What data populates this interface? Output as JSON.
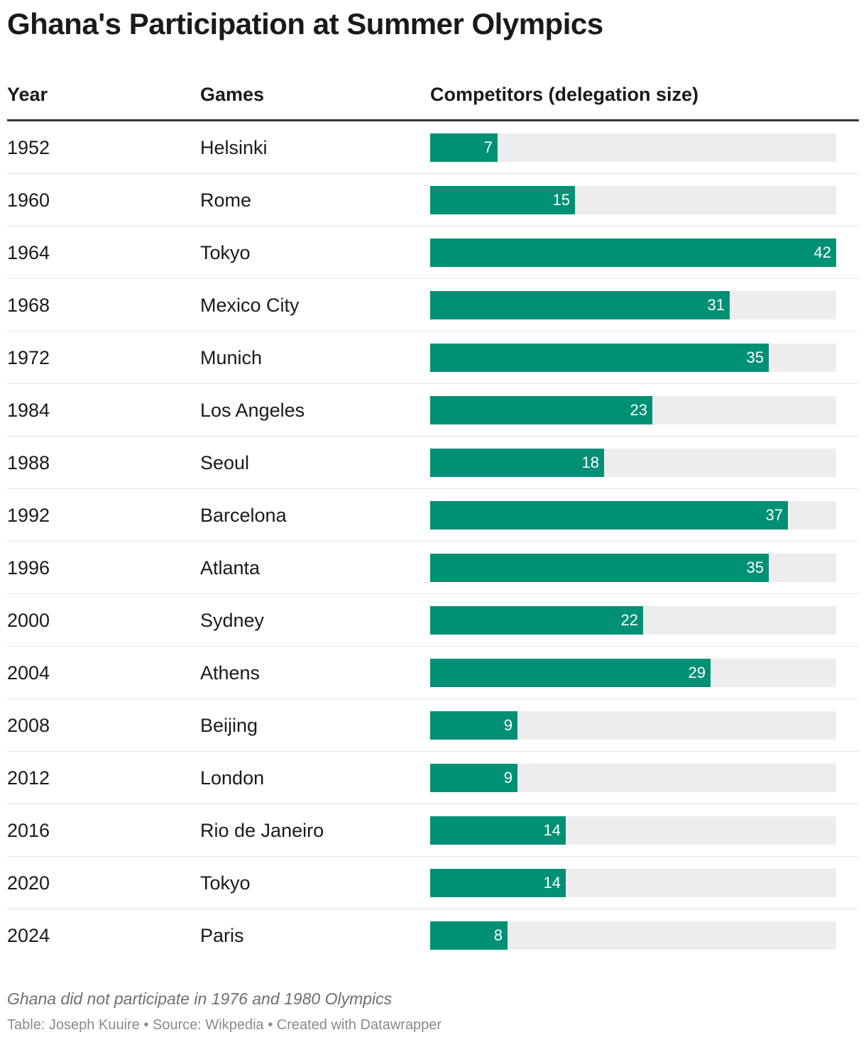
{
  "title": "Ghana's Participation at Summer Olympics",
  "columns": {
    "year": "Year",
    "games": "Games",
    "competitors": "Competitors (delegation size)"
  },
  "note": "Ghana did not participate in 1976 and 1980 Olympics",
  "footer": "Table: Joseph Kuuire • Source: Wikpedia • Created with Datawrapper",
  "colors": {
    "bar": "#009075",
    "track": "#ededed",
    "bar_label": "#ffffff"
  },
  "chart_data": {
    "type": "table",
    "value_max": 42,
    "rows": [
      {
        "year": "1952",
        "games": "Helsinki",
        "competitors": 7
      },
      {
        "year": "1960",
        "games": "Rome",
        "competitors": 15
      },
      {
        "year": "1964",
        "games": "Tokyo",
        "competitors": 42
      },
      {
        "year": "1968",
        "games": "Mexico City",
        "competitors": 31
      },
      {
        "year": "1972",
        "games": "Munich",
        "competitors": 35
      },
      {
        "year": "1984",
        "games": "Los Angeles",
        "competitors": 23
      },
      {
        "year": "1988",
        "games": "Seoul",
        "competitors": 18
      },
      {
        "year": "1992",
        "games": "Barcelona",
        "competitors": 37
      },
      {
        "year": "1996",
        "games": "Atlanta",
        "competitors": 35
      },
      {
        "year": "2000",
        "games": "Sydney",
        "competitors": 22
      },
      {
        "year": "2004",
        "games": "Athens",
        "competitors": 29
      },
      {
        "year": "2008",
        "games": "Beijing",
        "competitors": 9
      },
      {
        "year": "2012",
        "games": "London",
        "competitors": 9
      },
      {
        "year": "2016",
        "games": "Rio de Janeiro",
        "competitors": 14
      },
      {
        "year": "2020",
        "games": "Tokyo",
        "competitors": 14
      },
      {
        "year": "2024",
        "games": "Paris",
        "competitors": 8
      }
    ]
  }
}
